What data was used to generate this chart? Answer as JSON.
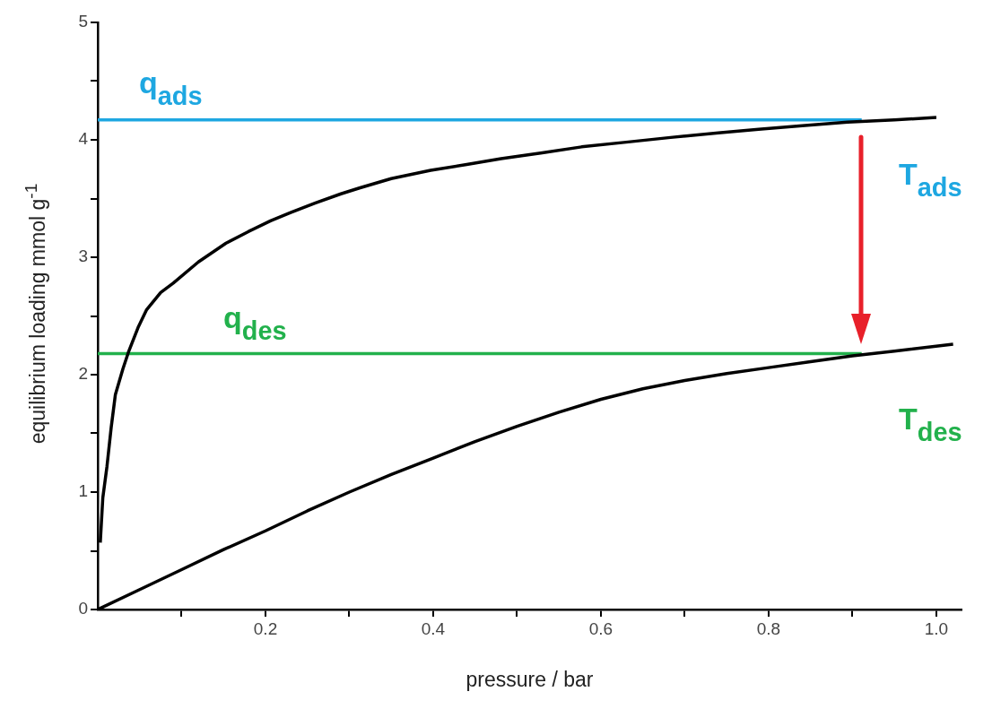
{
  "chart_data": {
    "type": "line",
    "xlabel": "pressure / bar",
    "ylabel": "equilibrium loading mmol g$^{-1}$",
    "xlim": [
      0,
      1.03
    ],
    "xticks": [
      {
        "value": 0.1,
        "label": null
      },
      0.2,
      {
        "value": 0.3,
        "label": null
      },
      0.4,
      {
        "value": 0.5,
        "label": null
      },
      0.6,
      {
        "value": 0.7,
        "label": null
      },
      0.8,
      {
        "value": 0.9,
        "label": null
      },
      {
        "value": 1.0,
        "label": "1.0"
      }
    ],
    "ylim": [
      0,
      5
    ],
    "yticks": [
      0,
      {
        "value": 0.5,
        "label": null
      },
      1,
      {
        "value": 1.5,
        "label": null
      },
      2,
      {
        "value": 2.5,
        "label": null
      },
      3,
      {
        "value": 3.5,
        "label": null
      },
      4,
      {
        "value": 4.5,
        "label": null
      },
      5
    ],
    "grid": false,
    "legend": false,
    "series": [
      {
        "color": "#000000",
        "x": [
          0.003,
          0.006,
          0.011,
          0.016,
          0.021,
          0.03,
          0.037,
          0.048,
          0.058,
          0.075,
          0.09,
          0.12,
          0.153,
          0.18,
          0.206,
          0.23,
          0.259,
          0.29,
          0.312,
          0.35,
          0.397,
          0.44,
          0.481,
          0.53,
          0.577,
          0.63,
          0.683,
          0.74,
          0.788,
          0.84,
          0.894,
          0.95,
          1.0
        ],
        "values": [
          0.57,
          0.95,
          1.22,
          1.55,
          1.83,
          2.05,
          2.2,
          2.4,
          2.55,
          2.7,
          2.78,
          2.96,
          3.12,
          3.22,
          3.31,
          3.38,
          3.46,
          3.54,
          3.59,
          3.67,
          3.74,
          3.79,
          3.84,
          3.89,
          3.94,
          3.98,
          4.02,
          4.06,
          4.09,
          4.12,
          4.15,
          4.17,
          4.19
        ]
      },
      {
        "color": "#000000",
        "x": [
          0,
          0.05,
          0.1,
          0.15,
          0.2,
          0.25,
          0.3,
          0.35,
          0.4,
          0.45,
          0.5,
          0.55,
          0.6,
          0.65,
          0.7,
          0.75,
          0.8,
          0.85,
          0.9,
          0.95,
          1.02
        ],
        "values": [
          0,
          0.17,
          0.34,
          0.51,
          0.67,
          0.84,
          1.0,
          1.15,
          1.29,
          1.43,
          1.56,
          1.68,
          1.79,
          1.88,
          1.95,
          2.01,
          2.06,
          2.11,
          2.16,
          2.2,
          2.26
        ]
      },
      {
        "color": "#1ea7e1",
        "x": [
          0,
          0.911
        ],
        "values": [
          4.17,
          4.17
        ]
      },
      {
        "color": "#22b14c",
        "x": [
          0,
          0.911
        ],
        "values": [
          2.18,
          2.18
        ]
      }
    ],
    "annotations": [
      "q$_{ads}$",
      "q$_{des}$",
      "T$_{ads}$",
      "T$_{des}$"
    ]
  }
}
